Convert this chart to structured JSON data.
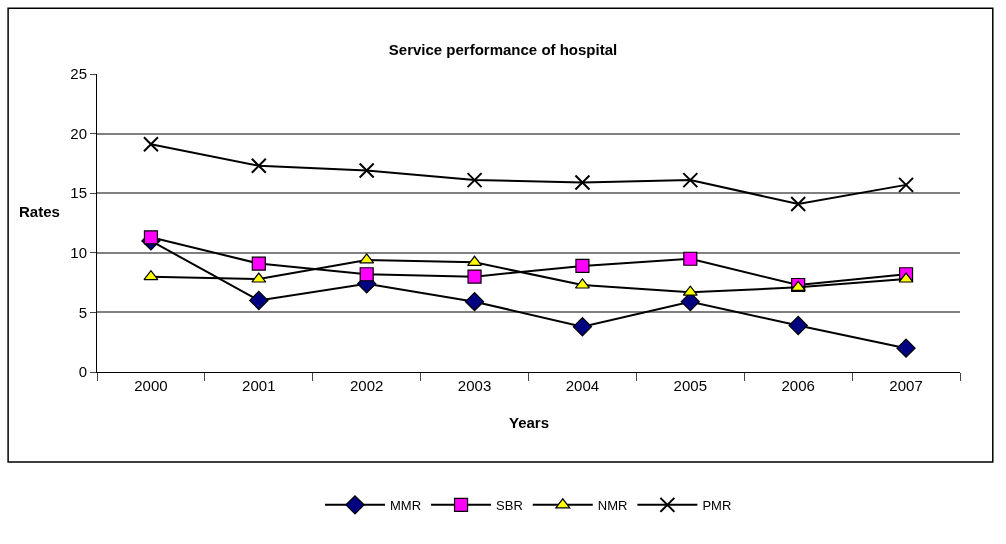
{
  "chart_data": {
    "type": "line",
    "title": "Service performance of hospital",
    "xlabel": "Years",
    "ylabel": "Rates",
    "categories": [
      "2000",
      "2001",
      "2002",
      "2003",
      "2004",
      "2005",
      "2006",
      "2007"
    ],
    "series": [
      {
        "name": "MMR",
        "color": "#000080",
        "marker": "diamond",
        "values": [
          11.0,
          6.0,
          7.4,
          5.9,
          3.8,
          5.9,
          3.9,
          2.0
        ]
      },
      {
        "name": "SBR",
        "color": "#ff00ff",
        "marker": "square",
        "values": [
          11.3,
          9.1,
          8.2,
          8.0,
          8.9,
          9.5,
          7.3,
          8.2
        ]
      },
      {
        "name": "NMR",
        "color": "#ffff00",
        "marker": "triangle",
        "values": [
          8.0,
          7.8,
          9.4,
          9.2,
          7.3,
          6.7,
          7.1,
          7.8
        ]
      },
      {
        "name": "PMR",
        "color": "#000000",
        "marker": "cross",
        "values": [
          19.1,
          17.3,
          16.9,
          16.1,
          15.9,
          16.1,
          14.1,
          15.7
        ]
      }
    ],
    "ylim": [
      0,
      25
    ],
    "yticks": [
      0,
      5,
      10,
      15,
      20,
      25
    ],
    "grid": "y",
    "legend": "bottom",
    "line_style": "solid"
  }
}
